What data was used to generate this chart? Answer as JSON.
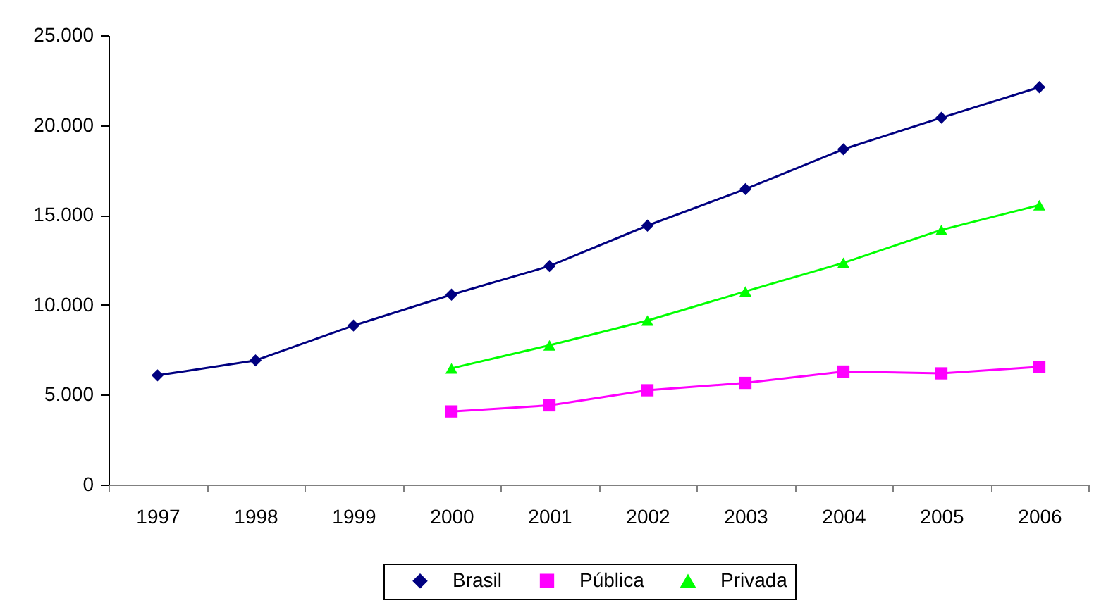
{
  "chart_data": {
    "type": "line",
    "categories": [
      "1997",
      "1998",
      "1999",
      "2000",
      "2001",
      "2002",
      "2003",
      "2004",
      "2005",
      "2006"
    ],
    "series": [
      {
        "name": "Brasil",
        "color": "#000080",
        "marker": "diamond",
        "values": [
          6080,
          6910,
          8850,
          10570,
          12160,
          14410,
          16440,
          18660,
          20410,
          22110
        ]
      },
      {
        "name": "Pública",
        "color": "#ff00ff",
        "marker": "square",
        "values": [
          null,
          null,
          null,
          4070,
          4410,
          5250,
          5660,
          6290,
          6190,
          6550
        ]
      },
      {
        "name": "Privada",
        "color": "#00ff00",
        "marker": "triangle",
        "values": [
          null,
          null,
          null,
          6470,
          7750,
          9130,
          10750,
          12340,
          14170,
          15550
        ]
      }
    ],
    "ylim": [
      0,
      25000
    ],
    "yticks": [
      0,
      {
        "value": 5000,
        "label": "5.000"
      },
      {
        "value": 10000,
        "label": "10.000"
      },
      {
        "value": 15000,
        "label": "15.000"
      },
      {
        "value": 20000,
        "label": "20.000"
      },
      {
        "value": 25000,
        "label": "25.000"
      }
    ],
    "legend": "bottom"
  }
}
